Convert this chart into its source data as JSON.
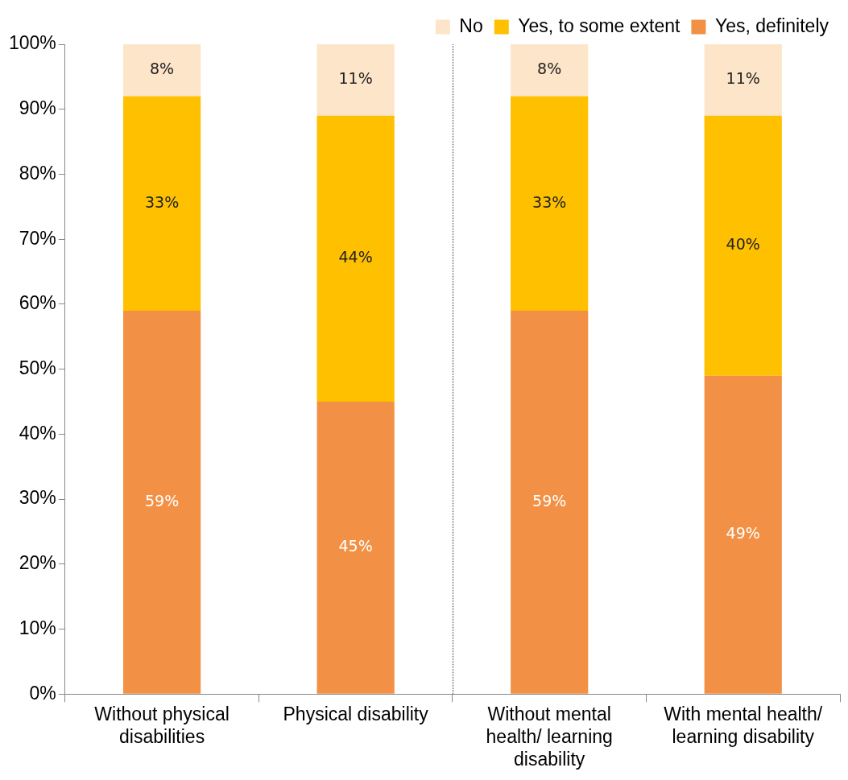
{
  "chart_data": {
    "type": "bar",
    "stacked": true,
    "categories": [
      "Without physical disabilities",
      "Physical disability",
      "Without mental health/ learning disability",
      "With mental health/ learning disability"
    ],
    "series": [
      {
        "name": "Yes, definitely",
        "color": "#f29145",
        "values": [
          59,
          45,
          59,
          49
        ],
        "value_labels": [
          "59%",
          "45%",
          "59%",
          "49%"
        ]
      },
      {
        "name": "Yes, to some extent",
        "color": "#ffc000",
        "values": [
          33,
          44,
          33,
          40
        ],
        "value_labels": [
          "33%",
          "44%",
          "33%",
          "40%"
        ]
      },
      {
        "name": "No",
        "color": "#fde5c9",
        "values": [
          8,
          11,
          8,
          11
        ],
        "value_labels": [
          "8%",
          "11%",
          "8%",
          "11%"
        ]
      }
    ],
    "ylim": [
      0,
      100
    ],
    "yticks": [
      {
        "value": 0,
        "label": "0%"
      },
      {
        "value": 10,
        "label": "10%"
      },
      {
        "value": 20,
        "label": "20%"
      },
      {
        "value": 30,
        "label": "30%"
      },
      {
        "value": 40,
        "label": "40%"
      },
      {
        "value": 50,
        "label": "50%"
      },
      {
        "value": 60,
        "label": "60%"
      },
      {
        "value": 70,
        "label": "70%"
      },
      {
        "value": 80,
        "label": "80%"
      },
      {
        "value": 90,
        "label": "90%"
      },
      {
        "value": 100,
        "label": "100%"
      }
    ],
    "grid": false,
    "legend": "top right"
  }
}
